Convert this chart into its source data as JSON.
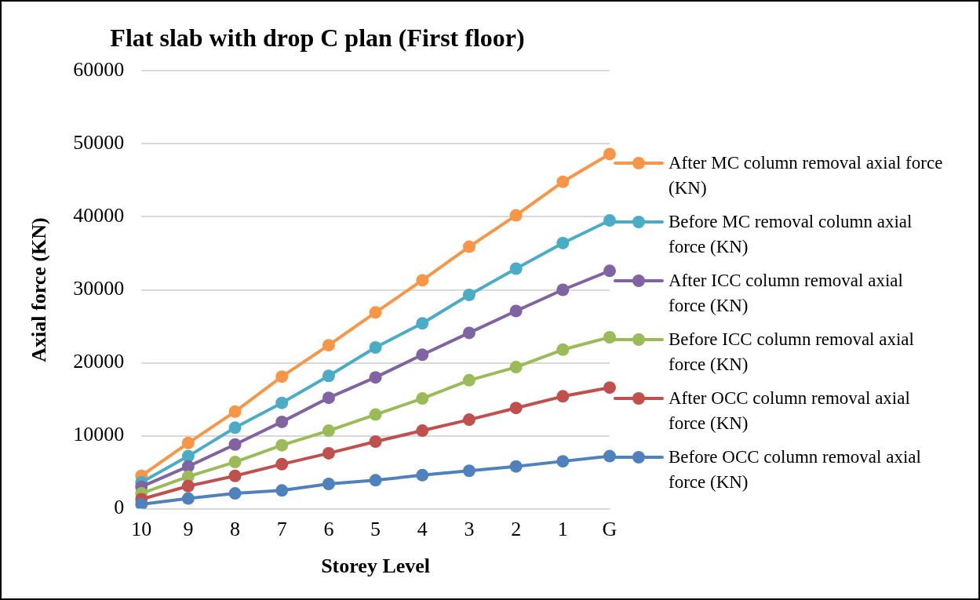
{
  "chart_data": {
    "type": "line",
    "title": "Flat slab with drop C plan (First floor)",
    "xlabel": "Storey Level",
    "ylabel": "Axial force (KN)",
    "categories": [
      "10",
      "9",
      "8",
      "7",
      "6",
      "5",
      "4",
      "3",
      "2",
      "1",
      "G"
    ],
    "series": [
      {
        "name": "After MC column removal axial force (KN)",
        "color": "#f79646",
        "values": [
          4500,
          9000,
          13300,
          18100,
          22400,
          26900,
          31300,
          35900,
          40200,
          44800,
          48600
        ]
      },
      {
        "name": "Before MC removal column axial force (KN)",
        "color": "#4bacc6",
        "values": [
          3600,
          7200,
          11100,
          14500,
          18200,
          22100,
          25400,
          29300,
          32900,
          36400,
          39500
        ]
      },
      {
        "name": "After ICC column removal axial force (KN)",
        "color": "#8064a2",
        "values": [
          3000,
          5800,
          8800,
          11900,
          15200,
          18000,
          21100,
          24100,
          27100,
          30000,
          32600
        ]
      },
      {
        "name": "Before ICC column removal axial force (KN)",
        "color": "#9bbb59",
        "values": [
          2100,
          4400,
          6400,
          8700,
          10700,
          12900,
          15100,
          17600,
          19400,
          21800,
          23500
        ]
      },
      {
        "name": "After OCC column removal axial force (KN)",
        "color": "#c0504d",
        "values": [
          1300,
          3100,
          4500,
          6100,
          7600,
          9200,
          10700,
          12200,
          13800,
          15400,
          16600
        ]
      },
      {
        "name": "Before OCC  column removal axial force (KN)",
        "color": "#4f81bd",
        "values": [
          600,
          1400,
          2100,
          2500,
          3400,
          3900,
          4600,
          5200,
          5800,
          6500,
          7200
        ]
      }
    ],
    "ylim": [
      0,
      60000
    ],
    "yticks": [
      0,
      10000,
      20000,
      30000,
      40000,
      50000,
      60000
    ],
    "grid": "y",
    "legend": "right",
    "marker": "circle",
    "line_style": "solid"
  }
}
